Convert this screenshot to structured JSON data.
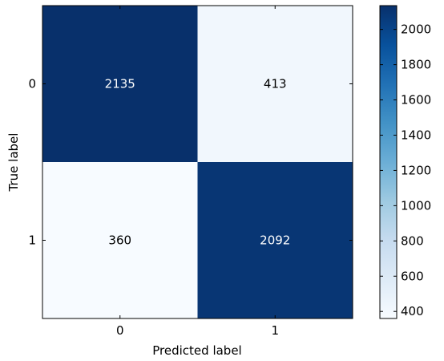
{
  "chart_data": {
    "type": "heatmap",
    "title": "",
    "xlabel": "Predicted label",
    "ylabel": "True label",
    "x_categories": [
      "0",
      "1"
    ],
    "y_categories": [
      "0",
      "1"
    ],
    "matrix": [
      [
        2135,
        413
      ],
      [
        360,
        2092
      ]
    ],
    "colormap": "Blues",
    "colorbar": {
      "range": [
        360,
        2135
      ],
      "ticks": [
        400,
        600,
        800,
        1000,
        1200,
        1400,
        1600,
        1800,
        2000
      ],
      "tick_labels": [
        "400",
        "600",
        "800",
        "1000",
        "1200",
        "1400",
        "1600",
        "1800",
        "2000"
      ]
    },
    "colors": {
      "low": "#f7fbff",
      "high": "#08306b",
      "text_on_dark": "#ffffff",
      "text_on_light": "#000000"
    }
  }
}
